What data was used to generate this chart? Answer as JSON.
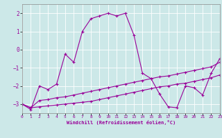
{
  "xlabel": "Windchill (Refroidissement éolien,°C)",
  "xlim": [
    0,
    23
  ],
  "ylim": [
    -3.5,
    2.5
  ],
  "yticks": [
    -3,
    -2,
    -1,
    0,
    1,
    2
  ],
  "xticks": [
    0,
    1,
    2,
    3,
    4,
    5,
    6,
    7,
    8,
    9,
    10,
    11,
    12,
    13,
    14,
    15,
    16,
    17,
    18,
    19,
    20,
    21,
    22,
    23
  ],
  "bg_color": "#cce8e8",
  "grid_color": "#ffffff",
  "line_color": "#990099",
  "line1_x": [
    0,
    1,
    2,
    3,
    4,
    5,
    6,
    7,
    8,
    9,
    10,
    11,
    12,
    13,
    14,
    15,
    16,
    17,
    18,
    19,
    20,
    21,
    22,
    23
  ],
  "line1_y": [
    -3.0,
    -3.3,
    -2.0,
    -2.2,
    -1.9,
    -0.25,
    -0.7,
    1.0,
    1.7,
    1.85,
    2.0,
    1.85,
    2.0,
    0.8,
    -1.3,
    -1.6,
    -2.45,
    -3.15,
    -3.2,
    -2.0,
    -2.1,
    -2.5,
    -1.3,
    -0.5
  ],
  "line2_x": [
    0,
    1,
    2,
    3,
    4,
    5,
    6,
    7,
    8,
    9,
    10,
    11,
    12,
    13,
    14,
    15,
    16,
    17,
    18,
    19,
    20,
    21,
    22,
    23
  ],
  "line2_y": [
    -3.0,
    -3.2,
    -2.8,
    -2.75,
    -2.65,
    -2.6,
    -2.5,
    -2.4,
    -2.3,
    -2.2,
    -2.1,
    -2.0,
    -1.9,
    -1.8,
    -1.7,
    -1.6,
    -1.5,
    -1.45,
    -1.35,
    -1.25,
    -1.15,
    -1.05,
    -0.95,
    -0.7
  ],
  "line3_x": [
    0,
    1,
    2,
    3,
    4,
    5,
    6,
    7,
    8,
    9,
    10,
    11,
    12,
    13,
    14,
    15,
    16,
    17,
    18,
    19,
    20,
    21,
    22,
    23
  ],
  "line3_y": [
    -3.0,
    -3.2,
    -3.15,
    -3.1,
    -3.05,
    -3.0,
    -2.95,
    -2.9,
    -2.85,
    -2.75,
    -2.65,
    -2.55,
    -2.45,
    -2.35,
    -2.25,
    -2.15,
    -2.05,
    -2.0,
    -1.9,
    -1.85,
    -1.75,
    -1.65,
    -1.55,
    -1.4
  ]
}
